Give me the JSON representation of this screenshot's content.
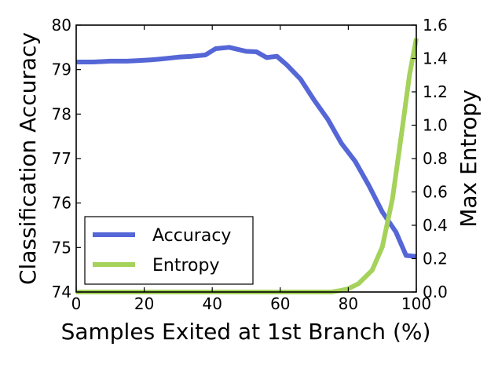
{
  "chart_data": {
    "type": "line",
    "xlabel": "Samples Exited at 1st Branch (%)",
    "ylabel_left": "Classification Accuracy",
    "ylabel_right": "Max Entropy",
    "xlim": [
      0,
      100
    ],
    "ylim_left": [
      74,
      80
    ],
    "ylim_right": [
      0.0,
      1.6
    ],
    "x_ticks": [
      "0",
      "20",
      "40",
      "60",
      "80",
      "100"
    ],
    "y_ticks_left": [
      "74",
      "75",
      "76",
      "77",
      "78",
      "79",
      "80"
    ],
    "y_ticks_right": [
      "0.0",
      "0.2",
      "0.4",
      "0.6",
      "0.8",
      "1.0",
      "1.2",
      "1.4",
      "1.6"
    ],
    "legend_position": "lower-left",
    "series": [
      {
        "name": "Accuracy",
        "axis": "left",
        "color": "#5566d6",
        "x": [
          0,
          5,
          10,
          15,
          18,
          22,
          25,
          30,
          34,
          38,
          41,
          45,
          50,
          53,
          56,
          59,
          62,
          66,
          70,
          74,
          78,
          82,
          86,
          90,
          94,
          97,
          100
        ],
        "y": [
          79.17,
          79.17,
          79.19,
          79.19,
          79.2,
          79.22,
          79.24,
          79.28,
          79.3,
          79.33,
          79.47,
          79.5,
          79.41,
          79.4,
          79.27,
          79.3,
          79.1,
          78.78,
          78.31,
          77.88,
          77.34,
          76.94,
          76.4,
          75.8,
          75.35,
          74.82,
          74.8
        ]
      },
      {
        "name": "Entropy",
        "axis": "right",
        "color": "#a5d25a",
        "x": [
          0,
          10,
          20,
          30,
          40,
          50,
          60,
          70,
          75,
          78,
          80,
          83,
          87,
          90,
          93,
          96,
          98,
          100
        ],
        "y": [
          0.0,
          0.0,
          0.0,
          0.0,
          0.0,
          0.0,
          0.0,
          0.0,
          0.0,
          0.01,
          0.02,
          0.05,
          0.13,
          0.27,
          0.56,
          1.0,
          1.3,
          1.52
        ]
      }
    ]
  }
}
